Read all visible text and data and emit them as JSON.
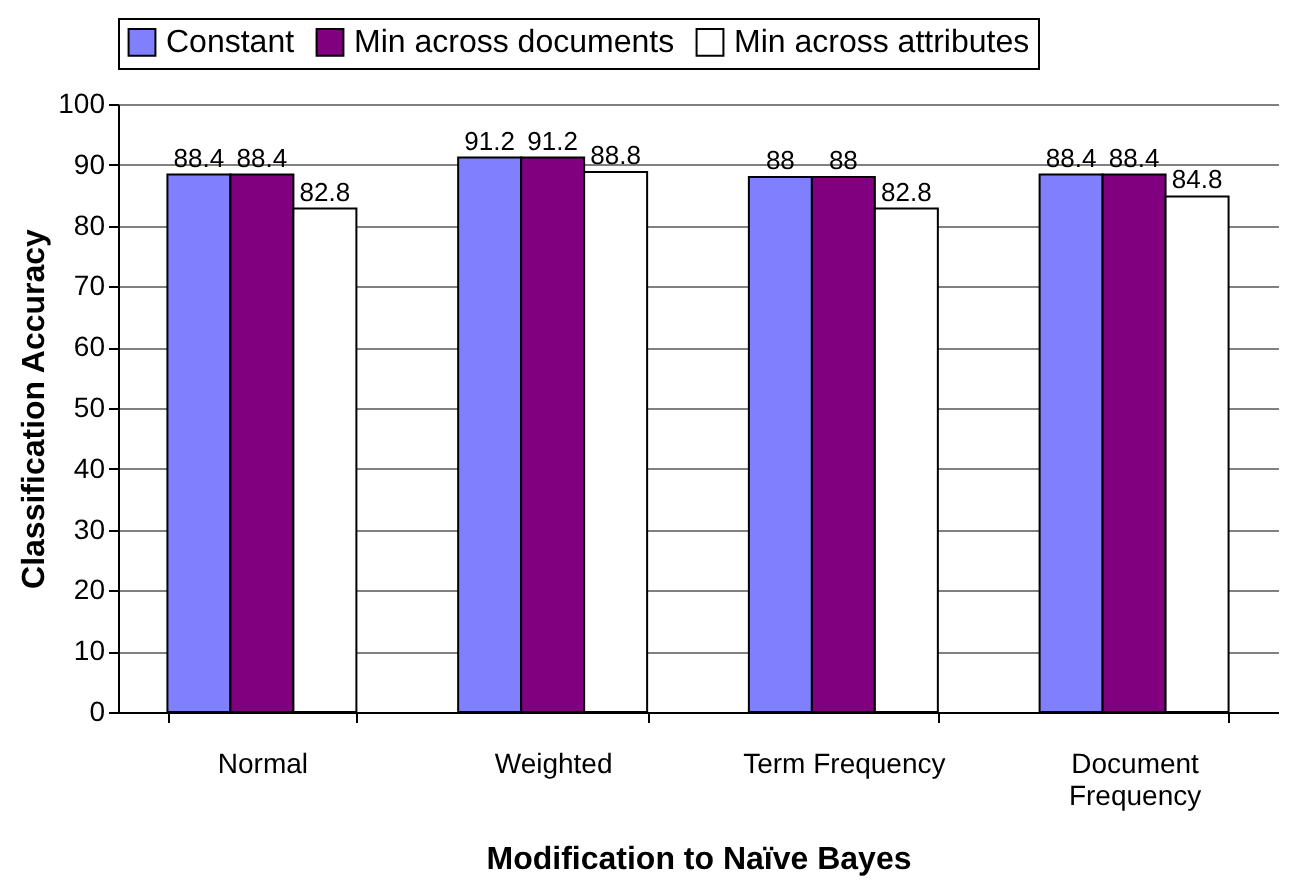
{
  "chart_data": {
    "type": "bar",
    "xlabel": "Modification to Naïve Bayes",
    "ylabel": "Classification Accuracy",
    "categories": [
      "Normal",
      "Weighted",
      "Term Frequency",
      "Document Frequency"
    ],
    "series": [
      {
        "name": "Constant",
        "color": "#8080ff",
        "values": [
          88.4,
          91.2,
          88,
          88.4
        ]
      },
      {
        "name": "Min across documents",
        "color": "#800080",
        "values": [
          88.4,
          91.2,
          88,
          88.4
        ]
      },
      {
        "name": "Min across attributes",
        "color": "#ffffff",
        "values": [
          82.8,
          88.8,
          82.8,
          84.8
        ]
      }
    ],
    "ylim": [
      0,
      100
    ],
    "yticks": [
      0,
      10,
      20,
      30,
      40,
      50,
      60,
      70,
      80,
      90,
      100
    ],
    "grid": "y",
    "legend": "top",
    "data_labels": true
  }
}
